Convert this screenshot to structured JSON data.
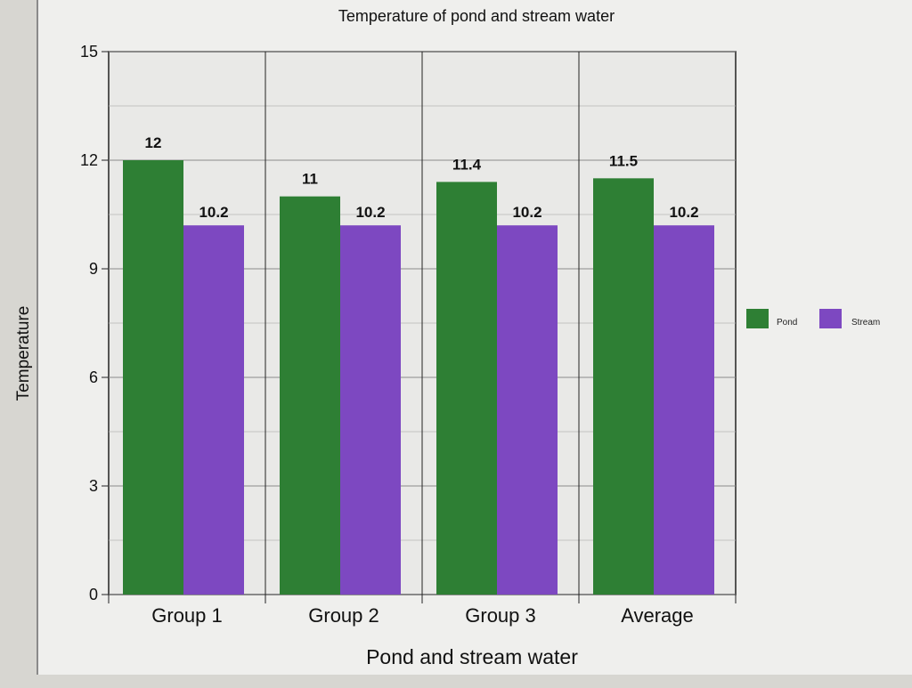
{
  "chart_data": {
    "type": "bar",
    "title": "Temperature of pond and stream water",
    "xlabel": "Pond and stream water",
    "ylabel": "Temperature",
    "categories": [
      "Group 1",
      "Group 2",
      "Group 3",
      "Average"
    ],
    "series": [
      {
        "name": "Pond",
        "values": [
          12,
          11,
          11.4,
          11.5
        ],
        "labels": [
          "12",
          "11",
          "11.4",
          "11.5"
        ]
      },
      {
        "name": "Stream",
        "values": [
          10.2,
          10.2,
          10.2,
          10.2
        ],
        "labels": [
          "10.2",
          "10.2",
          "10.2",
          "10.2"
        ]
      }
    ],
    "ylim": [
      0,
      15
    ],
    "yticks": [
      "0",
      "3",
      "6",
      "9",
      "12",
      "15"
    ],
    "grid": true,
    "legend_position": "right",
    "colors": {
      "pond": "#2e7f34",
      "stream": "#7d48c1",
      "axis": "#222222",
      "grid": "#8b8b8b",
      "plot_background": "#e9e9e7",
      "page_background": "#d7d6d1"
    }
  }
}
